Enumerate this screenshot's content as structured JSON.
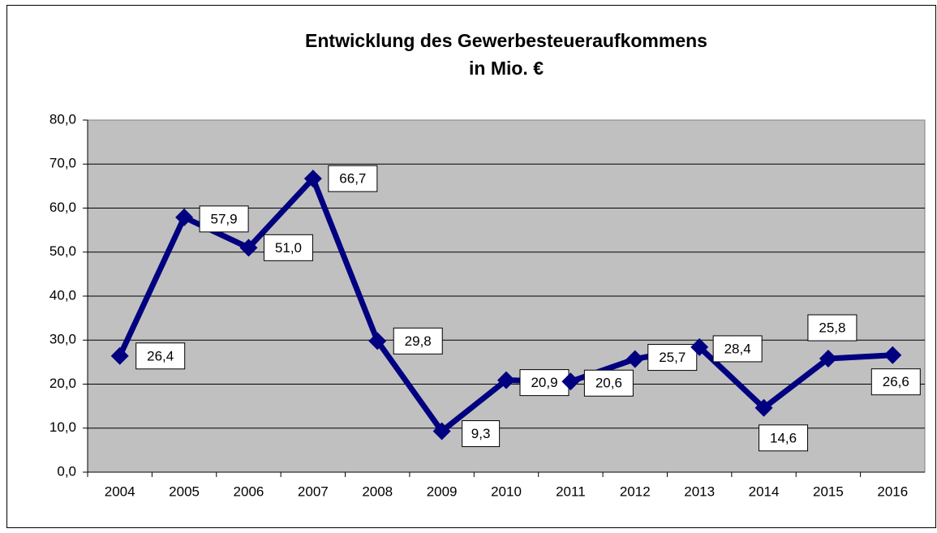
{
  "chart_data": {
    "type": "line",
    "title": [
      "Entwicklung des Gewerbesteueraufkommens",
      "in Mio. €"
    ],
    "categories": [
      "2004",
      "2005",
      "2006",
      "2007",
      "2008",
      "2009",
      "2010",
      "2011",
      "2012",
      "2013",
      "2014",
      "2015",
      "2016"
    ],
    "values": [
      26.4,
      57.9,
      51.0,
      66.7,
      29.8,
      9.3,
      20.9,
      20.6,
      25.7,
      28.4,
      14.6,
      25.8,
      26.6
    ],
    "value_labels": [
      "26,4",
      "57,9",
      "51,0",
      "66,7",
      "29,8",
      "9,3",
      "20,9",
      "20,6",
      "25,7",
      "28,4",
      "14,6",
      "25,8",
      "26,6"
    ],
    "color": "#000080",
    "ylim": [
      0,
      80
    ],
    "yticks": [
      {
        "value": 0,
        "label": "0,0"
      },
      {
        "value": 10,
        "label": "10,0"
      },
      {
        "value": 20,
        "label": "20,0"
      },
      {
        "value": 30,
        "label": "30,0"
      },
      {
        "value": 40,
        "label": "40,0"
      },
      {
        "value": 50,
        "label": "50,0"
      },
      {
        "value": 60,
        "label": "60,0"
      },
      {
        "value": 70,
        "label": "70,0"
      },
      {
        "value": 80,
        "label": "80,0"
      }
    ],
    "grid": true
  }
}
